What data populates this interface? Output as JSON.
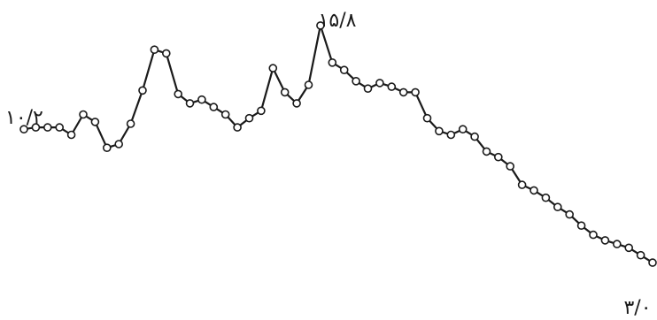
{
  "chart_data": {
    "type": "line",
    "title": "",
    "xlabel": "",
    "ylabel": "",
    "grid": false,
    "legend": "none",
    "line_color": "#1a1a1a",
    "marker_fill": "#ffffff",
    "ylim": [
      2.0,
      16.8
    ],
    "values": [
      10.2,
      10.3,
      10.3,
      10.3,
      9.9,
      11.0,
      10.6,
      9.2,
      9.4,
      10.5,
      12.3,
      14.5,
      14.3,
      12.1,
      11.6,
      11.8,
      11.4,
      11.0,
      10.3,
      10.8,
      11.2,
      13.5,
      12.2,
      11.6,
      12.6,
      15.8,
      13.8,
      13.4,
      12.8,
      12.4,
      12.7,
      12.5,
      12.2,
      12.2,
      10.8,
      10.1,
      9.9,
      10.2,
      9.8,
      9.0,
      8.7,
      8.2,
      7.2,
      6.9,
      6.5,
      6.0,
      5.6,
      5.0,
      4.5,
      4.2,
      4.0,
      3.8,
      3.4,
      3.0
    ],
    "annotations": {
      "start": "١٠/٢",
      "peak": "١۵/٨",
      "end": "٣/٠"
    }
  }
}
